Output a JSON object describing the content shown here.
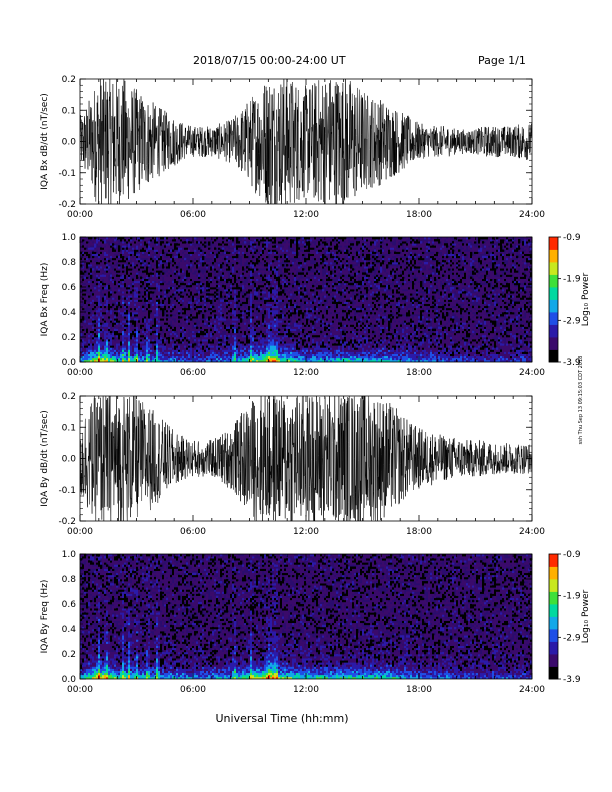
{
  "header": {
    "date_range": "2018/07/15   00:00-24:00 UT",
    "page": "Page 1/1"
  },
  "footer": {
    "xlabel": "Universal Time (hh:mm)",
    "side_note": "ssh Thu Sep 13 09:15:03 CDT 2018"
  },
  "colors": {
    "waveform": "#000000",
    "spectrogram_background": "#2a0c6e",
    "colormap": [
      "#000000",
      "#3a0a6b",
      "#2b1aa8",
      "#1f4fe6",
      "#12a8e8",
      "#00d9a0",
      "#3ee03a",
      "#c8e81e",
      "#ffb000",
      "#ff2a00"
    ]
  },
  "chart_data": [
    {
      "type": "line",
      "ylabel": "IQA Bx dB/dt (nT/sec)",
      "x_ticks": [
        "00:00",
        "06:00",
        "12:00",
        "18:00",
        "24:00"
      ],
      "xlim": [
        0,
        24
      ],
      "ylim": [
        -0.2,
        0.2
      ],
      "y_ticks": [
        "-0.2",
        "-0.1",
        "0.0",
        "0.1",
        "0.2"
      ],
      "y_tick_values": [
        -0.2,
        -0.1,
        0.0,
        0.1,
        0.2
      ],
      "series": [
        {
          "x_hours": [
            0,
            0.5,
            1,
            1.5,
            2,
            2.5,
            3,
            3.5,
            4,
            4.5,
            5,
            5.5,
            6,
            6.5,
            7,
            7.5,
            8,
            8.5,
            9,
            9.5,
            10,
            10.5,
            11,
            11.5,
            12,
            12.5,
            13,
            13.5,
            14,
            14.5,
            15,
            15.5,
            16,
            16.5,
            17,
            17.5,
            18,
            18.5,
            19,
            19.5,
            20,
            20.5,
            21,
            21.5,
            22,
            22.5,
            23,
            23.5,
            24
          ],
          "envelope_amplitude": [
            0.08,
            0.14,
            0.22,
            0.22,
            0.22,
            0.2,
            0.17,
            0.15,
            0.12,
            0.1,
            0.08,
            0.06,
            0.05,
            0.05,
            0.05,
            0.06,
            0.07,
            0.1,
            0.14,
            0.18,
            0.22,
            0.22,
            0.22,
            0.2,
            0.18,
            0.2,
            0.22,
            0.22,
            0.22,
            0.2,
            0.17,
            0.15,
            0.14,
            0.12,
            0.1,
            0.08,
            0.06,
            0.05,
            0.05,
            0.05,
            0.04,
            0.04,
            0.04,
            0.05,
            0.05,
            0.05,
            0.05,
            0.06,
            0.06
          ]
        }
      ]
    },
    {
      "type": "heatmap",
      "ylabel": "IQA Bx Freq (Hz)",
      "x_ticks": [
        "00:00",
        "06:00",
        "12:00",
        "18:00",
        "24:00"
      ],
      "xlim": [
        0,
        24
      ],
      "ylim": [
        0,
        1.0
      ],
      "y_ticks": [
        "0.0",
        "0.2",
        "0.4",
        "0.6",
        "0.8",
        "1.0"
      ],
      "y_tick_values": [
        0,
        0.2,
        0.4,
        0.6,
        0.8,
        1.0
      ],
      "colorbar": {
        "label": "Log₁₀ Power",
        "range": [
          -3.9,
          -0.9
        ],
        "ticks": [
          "-0.9",
          "-1.9",
          "-2.9",
          "-3.9"
        ],
        "tick_values": [
          -0.9,
          -1.9,
          -2.9,
          -3.9
        ]
      },
      "background_level": -3.6,
      "bursts_hours": [
        1.0,
        1.4,
        2.3,
        2.6,
        3.0,
        3.6,
        4.1,
        8.2,
        9.1,
        10.0,
        10.2,
        10.4
      ],
      "low_frequency_band": {
        "x_hours": [
          0,
          1,
          2,
          4,
          6,
          8,
          10,
          12,
          14,
          16,
          18,
          20,
          22,
          24
        ],
        "level": [
          -2.6,
          -1.2,
          -2.1,
          -2.5,
          -2.8,
          -2.6,
          -1.3,
          -2.4,
          -2.2,
          -2.3,
          -2.7,
          -2.9,
          -3.0,
          -3.0
        ]
      }
    },
    {
      "type": "line",
      "ylabel": "IQA By dB/dt (nT/sec)",
      "x_ticks": [
        "00:00",
        "06:00",
        "12:00",
        "18:00",
        "24:00"
      ],
      "xlim": [
        0,
        24
      ],
      "ylim": [
        -0.2,
        0.2
      ],
      "y_ticks": [
        "-0.2",
        "-0.1",
        "0.0",
        "0.1",
        "0.2"
      ],
      "y_tick_values": [
        -0.2,
        -0.1,
        0.0,
        0.1,
        0.2
      ],
      "series": [
        {
          "x_hours": [
            0,
            0.5,
            1,
            1.5,
            2,
            2.5,
            3,
            3.5,
            4,
            4.5,
            5,
            5.5,
            6,
            6.5,
            7,
            7.5,
            8,
            8.5,
            9,
            9.5,
            10,
            10.5,
            11,
            11.5,
            12,
            12.5,
            13,
            13.5,
            14,
            14.5,
            15,
            15.5,
            16,
            16.5,
            17,
            17.5,
            18,
            18.5,
            19,
            19.5,
            20,
            20.5,
            21,
            21.5,
            22,
            22.5,
            23,
            23.5,
            24
          ],
          "envelope_amplitude": [
            0.14,
            0.18,
            0.22,
            0.22,
            0.22,
            0.22,
            0.2,
            0.18,
            0.15,
            0.12,
            0.09,
            0.07,
            0.06,
            0.06,
            0.06,
            0.08,
            0.1,
            0.14,
            0.18,
            0.22,
            0.22,
            0.22,
            0.22,
            0.22,
            0.22,
            0.22,
            0.22,
            0.22,
            0.22,
            0.22,
            0.22,
            0.22,
            0.2,
            0.18,
            0.15,
            0.12,
            0.1,
            0.09,
            0.08,
            0.07,
            0.07,
            0.06,
            0.06,
            0.06,
            0.05,
            0.05,
            0.05,
            0.05,
            0.05
          ]
        }
      ]
    },
    {
      "type": "heatmap",
      "ylabel": "IQA By Freq (Hz)",
      "x_ticks": [
        "00:00",
        "06:00",
        "12:00",
        "18:00",
        "24:00"
      ],
      "xlim": [
        0,
        24
      ],
      "ylim": [
        0,
        1.0
      ],
      "y_ticks": [
        "0.0",
        "0.2",
        "0.4",
        "0.6",
        "0.8",
        "1.0"
      ],
      "y_tick_values": [
        0,
        0.2,
        0.4,
        0.6,
        0.8,
        1.0
      ],
      "colorbar": {
        "label": "Log₁₀ Power",
        "range": [
          -3.9,
          -0.9
        ],
        "ticks": [
          "-0.9",
          "-1.9",
          "-2.9",
          "-3.9"
        ],
        "tick_values": [
          -0.9,
          -1.9,
          -2.9,
          -3.9
        ]
      },
      "background_level": -3.6,
      "bursts_hours": [
        1.0,
        1.4,
        2.3,
        2.6,
        3.0,
        3.6,
        4.1,
        8.2,
        9.1,
        10.0,
        10.2,
        10.4
      ],
      "low_frequency_band": {
        "x_hours": [
          0,
          1,
          2,
          4,
          6,
          8,
          10,
          12,
          14,
          16,
          18,
          20,
          22,
          24
        ],
        "level": [
          -2.5,
          -1.1,
          -2.0,
          -2.3,
          -2.6,
          -2.4,
          -1.2,
          -2.2,
          -2.0,
          -2.1,
          -2.5,
          -2.8,
          -2.9,
          -2.9
        ]
      }
    }
  ]
}
